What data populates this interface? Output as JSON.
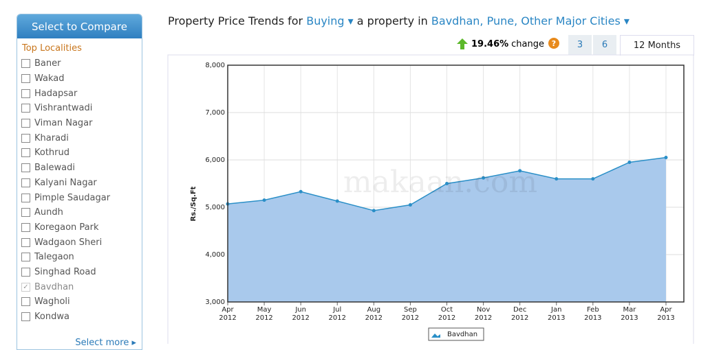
{
  "sidebar": {
    "title": "Select to Compare",
    "subtitle": "Top Localities",
    "items": [
      {
        "label": "Baner",
        "checked": false
      },
      {
        "label": "Wakad",
        "checked": false
      },
      {
        "label": "Hadapsar",
        "checked": false
      },
      {
        "label": "Vishrantwadi",
        "checked": false
      },
      {
        "label": "Viman Nagar",
        "checked": false
      },
      {
        "label": "Kharadi",
        "checked": false
      },
      {
        "label": "Kothrud",
        "checked": false
      },
      {
        "label": "Balewadi",
        "checked": false
      },
      {
        "label": "Kalyani Nagar",
        "checked": false
      },
      {
        "label": "Pimple Saudagar",
        "checked": false
      },
      {
        "label": "Aundh",
        "checked": false
      },
      {
        "label": "Koregaon Park",
        "checked": false
      },
      {
        "label": "Wadgaon Sheri",
        "checked": false
      },
      {
        "label": "Talegaon",
        "checked": false
      },
      {
        "label": "Singhad Road",
        "checked": false
      },
      {
        "label": "Bavdhan",
        "checked": true
      },
      {
        "label": "Wagholi",
        "checked": false
      },
      {
        "label": "Kondwa",
        "checked": false
      }
    ],
    "more": "Select more"
  },
  "header": {
    "prefix": "Property Price Trends for",
    "mode": "Buying",
    "middle": "a property in",
    "location": "Bavdhan, Pune, Other Major Cities"
  },
  "change": {
    "value": "19.46%",
    "label": "change",
    "tabs": [
      "3",
      "6",
      "12 Months"
    ],
    "active_tab": 2
  },
  "chart_data": {
    "type": "area",
    "y_label": "Rs./Sq.Ft",
    "watermark": "makaan.com",
    "categories": [
      "Apr 2012",
      "May 2012",
      "Jun 2012",
      "Jul 2012",
      "Aug 2012",
      "Sep 2012",
      "Oct 2012",
      "Nov 2012",
      "Dec 2012",
      "Jan 2013",
      "Feb 2013",
      "Mar 2013",
      "Apr 2013"
    ],
    "series": [
      {
        "name": "Bavdhan",
        "color": "#2a8fc7",
        "fill": "#a9c9ec",
        "values": [
          5070,
          5150,
          5330,
          5130,
          4930,
          5050,
          5500,
          5620,
          5770,
          5600,
          5600,
          5950,
          6050
        ]
      }
    ],
    "ylim": [
      3000,
      8000
    ],
    "yticks": [
      {
        "value": 3000,
        "label": "3,000"
      },
      {
        "value": 4000,
        "label": "4,000"
      },
      {
        "value": 5000,
        "label": "5,000"
      },
      {
        "value": 6000,
        "label": "6,000"
      },
      {
        "value": 7000,
        "label": "7,000"
      },
      {
        "value": 8000,
        "label": "8,000"
      }
    ],
    "grid": true
  }
}
